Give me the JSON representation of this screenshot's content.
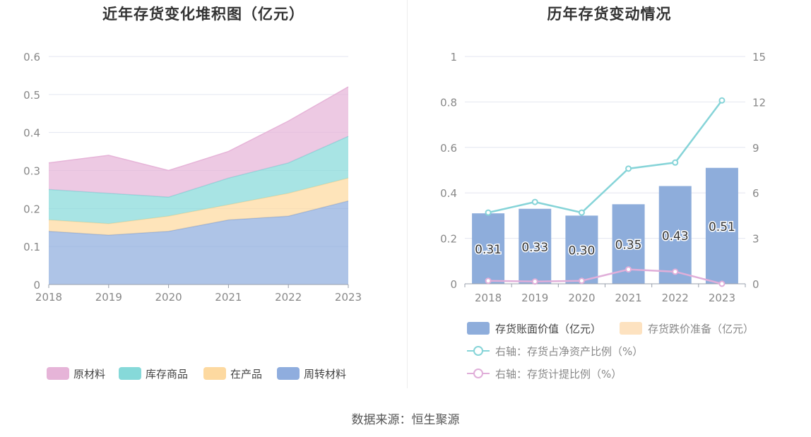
{
  "left_chart": {
    "title": "近年存货变化堆积图（亿元）"
  },
  "right_chart": {
    "title": "历年存货变动情况"
  },
  "source": "数据来源：恒生聚源",
  "colors": {
    "raw_materials": "#e6b4d8",
    "goods_in_stock": "#86d9d9",
    "work_in_progress": "#fdd9a0",
    "turnover_materials": "#8fadde",
    "bar": "#8eaddb",
    "impairment": "#fde2c0",
    "ratio_line": "#86d4d8",
    "provision_line": "#e0aed9"
  },
  "chart_data": [
    {
      "type": "area",
      "stacked": true,
      "title": "近年存货变化堆积图（亿元）",
      "x": [
        "2018",
        "2019",
        "2020",
        "2021",
        "2022",
        "2023"
      ],
      "ylim": [
        0,
        0.6
      ],
      "yticks": [
        "0",
        "0.1",
        "0.2",
        "0.3",
        "0.4",
        "0.5",
        "0.6"
      ],
      "grid": true,
      "legend_position": "bottom",
      "series": [
        {
          "name": "周转材料",
          "color_key": "turnover_materials",
          "values": [
            0.14,
            0.13,
            0.14,
            0.17,
            0.18,
            0.22
          ]
        },
        {
          "name": "在产品",
          "color_key": "work_in_progress",
          "values": [
            0.03,
            0.03,
            0.04,
            0.04,
            0.06,
            0.06
          ]
        },
        {
          "name": "库存商品",
          "color_key": "goods_in_stock",
          "values": [
            0.08,
            0.08,
            0.05,
            0.07,
            0.08,
            0.11
          ]
        },
        {
          "name": "原材料",
          "color_key": "raw_materials",
          "values": [
            0.07,
            0.1,
            0.07,
            0.07,
            0.11,
            0.13
          ]
        }
      ],
      "legend_order": [
        "原材料",
        "库存商品",
        "在产品",
        "周转材料"
      ]
    },
    {
      "type": "bar",
      "title": "历年存货变动情况",
      "categories": [
        "2018",
        "2019",
        "2020",
        "2021",
        "2022",
        "2023"
      ],
      "ylim": [
        0,
        1
      ],
      "yticks": [
        "0",
        "0.2",
        "0.4",
        "0.6",
        "0.8",
        "1"
      ],
      "y2lim": [
        0,
        15
      ],
      "y2ticks": [
        "0",
        "3",
        "6",
        "9",
        "12",
        "15"
      ],
      "grid": true,
      "legend_position": "bottom",
      "series": [
        {
          "name": "存货账面价值（亿元）",
          "type": "bar",
          "axis": "left",
          "color_key": "bar",
          "values": [
            0.31,
            0.33,
            0.3,
            0.35,
            0.43,
            0.51
          ],
          "labels": [
            "0.31",
            "0.33",
            "0.30",
            "0.35",
            "0.43",
            "0.51"
          ]
        },
        {
          "name": "存货跌价准备（亿元）",
          "type": "bar",
          "axis": "left",
          "color_key": "impairment",
          "values": [
            0,
            0,
            0,
            0,
            0,
            0
          ]
        },
        {
          "name": "右轴：存货占净资产比例（%）",
          "type": "line",
          "axis": "right",
          "color_key": "ratio_line",
          "values": [
            4.7,
            5.4,
            4.7,
            7.6,
            8.0,
            12.1
          ]
        },
        {
          "name": "右轴：存货计提比例（%）",
          "type": "line",
          "axis": "right",
          "color_key": "provision_line",
          "values": [
            0.2,
            0.15,
            0.2,
            0.95,
            0.8,
            0.0
          ]
        }
      ]
    }
  ]
}
